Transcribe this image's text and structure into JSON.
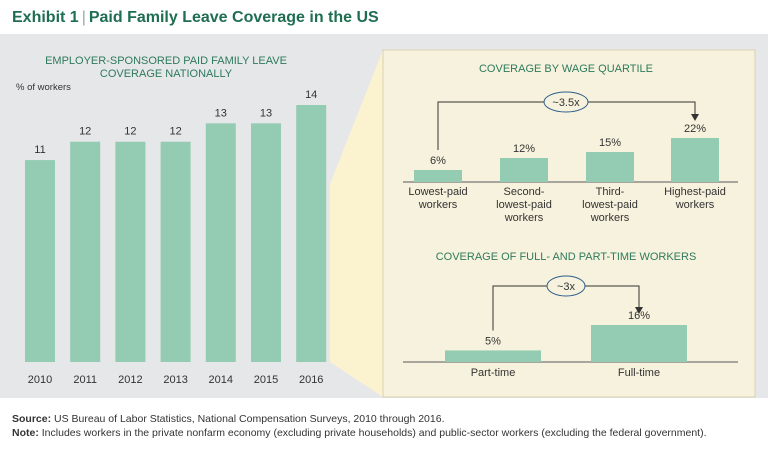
{
  "header": {
    "exhibit_label": "Exhibit 1",
    "separator": "|",
    "title": "Paid Family Leave Coverage in the US"
  },
  "colors": {
    "bar": "#93cbb3",
    "title": "#1f6e52",
    "panel_bg": "#e6e7e9",
    "inset_bg": "#f7f2dd",
    "zoom_wedge": "#fbf3cf",
    "heading": "#2e7a5c"
  },
  "chart_data": [
    {
      "type": "bar",
      "title_lines": [
        "EMPLOYER-SPONSORED PAID FAMILY LEAVE",
        "COVERAGE NATIONALLY"
      ],
      "ylabel": "% of workers",
      "categories": [
        "2010",
        "2011",
        "2012",
        "2013",
        "2014",
        "2015",
        "2016"
      ],
      "values": [
        11,
        12,
        12,
        12,
        13,
        13,
        14
      ],
      "data_labels": [
        "11",
        "12",
        "12",
        "12",
        "13",
        "13",
        "14"
      ],
      "ylim": [
        0,
        14
      ],
      "grid": false,
      "legend": "none"
    },
    {
      "type": "bar",
      "title": "COVERAGE BY WAGE QUARTILE",
      "categories": [
        [
          "Lowest-paid",
          "workers"
        ],
        [
          "Second-",
          "lowest-paid",
          "workers"
        ],
        [
          "Third-",
          "lowest-paid",
          "workers"
        ],
        [
          "Highest-paid",
          "workers"
        ]
      ],
      "values": [
        6,
        12,
        15,
        22
      ],
      "data_labels": [
        "6%",
        "12%",
        "15%",
        "22%"
      ],
      "annotation": "~3.5x",
      "ylim": [
        0,
        22
      ],
      "legend": "none"
    },
    {
      "type": "bar",
      "title": "COVERAGE OF FULL- AND PART-TIME WORKERS",
      "categories": [
        "Part-time",
        "Full-time"
      ],
      "values": [
        5,
        16
      ],
      "data_labels": [
        "5%",
        "16%"
      ],
      "annotation": "~3x",
      "ylim": [
        0,
        16
      ],
      "legend": "none"
    }
  ],
  "footnote": {
    "source_label": "Source:",
    "source_text": " US Bureau of Labor Statistics, National Compensation Surveys, 2010 through 2016.",
    "note_label": "Note:",
    "note_text": " Includes workers in the private nonfarm economy (excluding private households) and public-sector workers (excluding the federal government)."
  }
}
